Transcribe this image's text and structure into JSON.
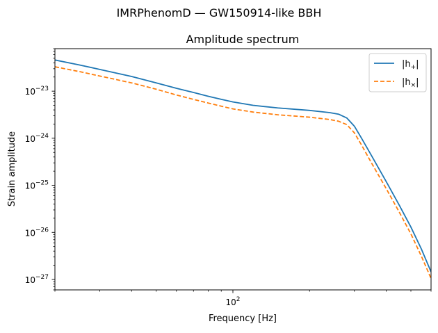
{
  "figure": {
    "suptitle": "IMRPhenomD — GW150914-like BBH"
  },
  "chart_data": {
    "type": "line",
    "title": "Amplitude spectrum",
    "xlabel": "Frequency [Hz]",
    "ylabel": "Strain amplitude",
    "xscale": "log",
    "yscale": "log",
    "xlim": [
      20,
      600
    ],
    "ylim": [
      6e-28,
      8e-23
    ],
    "grid": false,
    "legend_position": "top-right",
    "x_tick_labels": [
      {
        "value": 100,
        "base": "10",
        "exp": "2"
      }
    ],
    "y_tick_labels": [
      {
        "value": 1e-23,
        "base": "10",
        "exp": "−23"
      },
      {
        "value": 1e-24,
        "base": "10",
        "exp": "−24"
      },
      {
        "value": 1e-25,
        "base": "10",
        "exp": "−25"
      },
      {
        "value": 1e-26,
        "base": "10",
        "exp": "−26"
      },
      {
        "value": 1e-27,
        "base": "10",
        "exp": "−27"
      }
    ],
    "series": [
      {
        "name": "|h+|",
        "legend_base": "|h",
        "legend_sub": "+",
        "color": "#1f77b4",
        "style": "solid",
        "points": [
          [
            20,
            4.6e-23
          ],
          [
            25,
            3.6e-23
          ],
          [
            30,
            2.9e-23
          ],
          [
            40,
            2.05e-23
          ],
          [
            50,
            1.5e-23
          ],
          [
            60,
            1.15e-23
          ],
          [
            70,
            9.4e-24
          ],
          [
            80,
            7.8e-24
          ],
          [
            90,
            6.7e-24
          ],
          [
            100,
            5.9e-24
          ],
          [
            120,
            5e-24
          ],
          [
            150,
            4.4e-24
          ],
          [
            200,
            3.9e-24
          ],
          [
            240,
            3.5e-24
          ],
          [
            260,
            3.25e-24
          ],
          [
            280,
            2.7e-24
          ],
          [
            300,
            1.8e-24
          ],
          [
            320,
            1e-24
          ],
          [
            350,
            4.3e-25
          ],
          [
            400,
            1.2e-25
          ],
          [
            450,
            3.8e-26
          ],
          [
            500,
            1.3e-26
          ],
          [
            550,
            4.4e-27
          ],
          [
            600,
            1.45e-27
          ]
        ]
      },
      {
        "name": "|h×|",
        "legend_base": "|h",
        "legend_sub": "×",
        "color": "#ff7f0e",
        "style": "dashed",
        "points": [
          [
            20,
            3.3e-23
          ],
          [
            25,
            2.6e-23
          ],
          [
            30,
            2.1e-23
          ],
          [
            40,
            1.5e-23
          ],
          [
            50,
            1.1e-23
          ],
          [
            60,
            8.3e-24
          ],
          [
            70,
            6.7e-24
          ],
          [
            80,
            5.6e-24
          ],
          [
            90,
            4.8e-24
          ],
          [
            100,
            4.2e-24
          ],
          [
            120,
            3.6e-24
          ],
          [
            150,
            3.15e-24
          ],
          [
            200,
            2.8e-24
          ],
          [
            240,
            2.5e-24
          ],
          [
            260,
            2.3e-24
          ],
          [
            280,
            1.95e-24
          ],
          [
            300,
            1.3e-24
          ],
          [
            320,
            7.2e-25
          ],
          [
            350,
            3e-25
          ],
          [
            400,
            8.5e-26
          ],
          [
            450,
            2.7e-26
          ],
          [
            500,
            9.3e-27
          ],
          [
            550,
            3.1e-27
          ],
          [
            600,
            1.05e-27
          ]
        ]
      }
    ]
  }
}
